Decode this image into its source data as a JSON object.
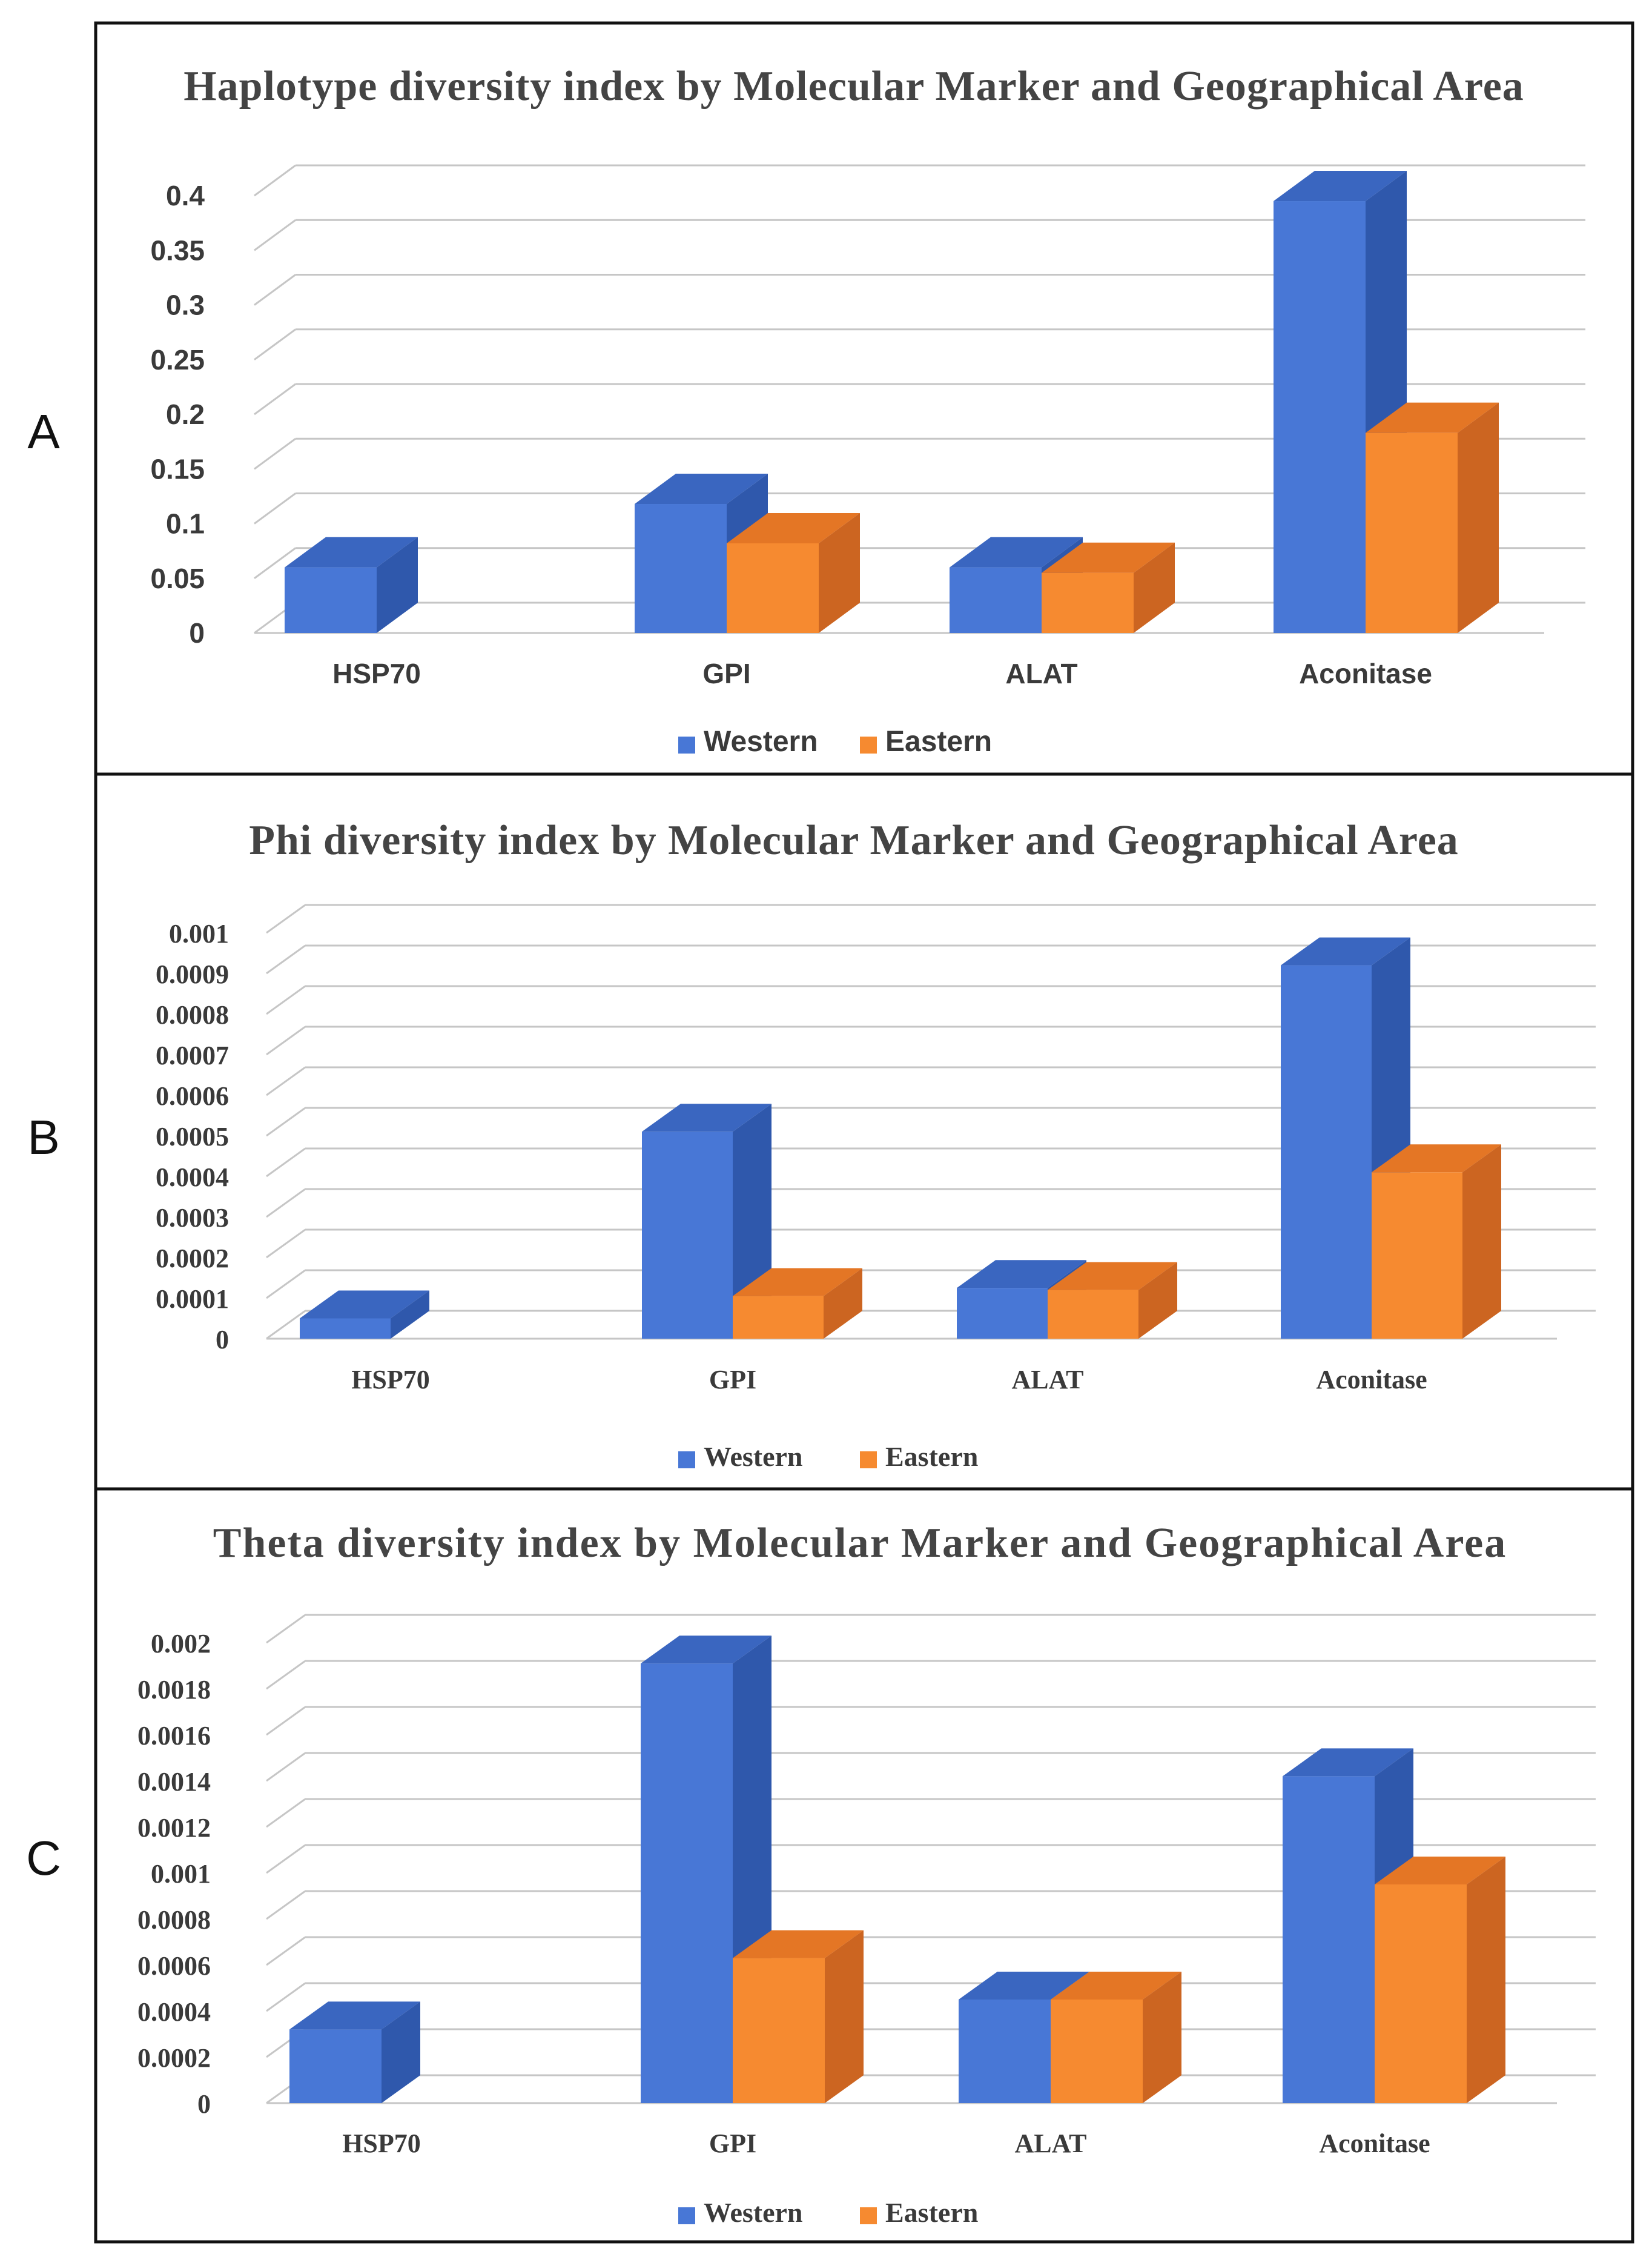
{
  "colors": {
    "western_front": "#4877D6",
    "western_top": "#3A66C0",
    "western_side": "#2F58AC",
    "eastern_front": "#F68A30",
    "eastern_top": "#E47625",
    "eastern_side": "#CC6521",
    "grid": "#C6C6C6",
    "frame": "#111111",
    "text": "#3A3A3A"
  },
  "chart_data": [
    {
      "panel_label": "A",
      "type": "bar",
      "title": "Haplotype diversity index by Molecular Marker and Geographical Area",
      "categories": [
        "HSP70",
        "GPI",
        "ALAT",
        "Aconitase"
      ],
      "series": [
        {
          "name": "Western",
          "values": [
            0.06,
            0.118,
            0.06,
            0.395
          ]
        },
        {
          "name": "Eastern",
          "values": [
            null,
            0.082,
            0.055,
            0.183
          ]
        }
      ],
      "yticks": [
        "0",
        "0.05",
        "0.1",
        "0.15",
        "0.2",
        "0.25",
        "0.3",
        "0.35",
        "0.4"
      ],
      "ylim": [
        0,
        0.4
      ],
      "legend": [
        "Western",
        "Eastern"
      ],
      "legend_position": "bottom"
    },
    {
      "panel_label": "B",
      "type": "bar",
      "title": "Phi diversity index by Molecular Marker and Geographical Area",
      "categories": [
        "HSP70",
        "GPI",
        "ALAT",
        "Aconitase"
      ],
      "series": [
        {
          "name": "Western",
          "values": [
            5e-05,
            0.00051,
            0.000125,
            0.00092
          ]
        },
        {
          "name": "Eastern",
          "values": [
            null,
            0.000105,
            0.00012,
            0.00041
          ]
        }
      ],
      "yticks": [
        "0",
        "0.0001",
        "0.0002",
        "0.0003",
        "0.0004",
        "0.0005",
        "0.0006",
        "0.0007",
        "0.0008",
        "0.0009",
        "0.001"
      ],
      "ylim": [
        0,
        0.001
      ],
      "legend": [
        "Western",
        "Eastern"
      ],
      "legend_position": "bottom"
    },
    {
      "panel_label": "C",
      "type": "bar",
      "title": "Theta diversity index by Molecular Marker and Geographical Area",
      "categories": [
        "HSP70",
        "GPI",
        "ALAT",
        "Aconitase"
      ],
      "series": [
        {
          "name": "Western",
          "values": [
            0.00032,
            0.00191,
            0.00045,
            0.00142
          ]
        },
        {
          "name": "Eastern",
          "values": [
            null,
            0.00063,
            0.00045,
            0.00095
          ]
        }
      ],
      "yticks": [
        "0",
        "0.0002",
        "0.0004",
        "0.0006",
        "0.0008",
        "0.001",
        "0.0012",
        "0.0014",
        "0.0016",
        "0.0018",
        "0.002"
      ],
      "ylim": [
        0,
        0.002
      ],
      "legend": [
        "Western",
        "Eastern"
      ],
      "legend_position": "bottom"
    }
  ]
}
